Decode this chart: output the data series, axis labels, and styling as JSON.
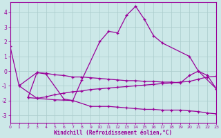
{
  "bg_color": "#cce8e8",
  "grid_color": "#aacccc",
  "line_color": "#990099",
  "xlim": [
    0,
    23
  ],
  "ylim": [
    -3.5,
    4.7
  ],
  "xticks": [
    0,
    1,
    2,
    3,
    4,
    5,
    6,
    7,
    8,
    9,
    10,
    11,
    12,
    13,
    14,
    15,
    16,
    17,
    18,
    19,
    20,
    21,
    22,
    23
  ],
  "yticks": [
    -3,
    -2,
    -1,
    0,
    1,
    2,
    3,
    4
  ],
  "xlabel": "Windchill (Refroidissement éolien,°C)",
  "lines": [
    {
      "x": [
        0,
        1,
        3,
        4,
        6,
        7,
        8,
        10,
        11,
        12,
        13,
        14,
        15,
        16,
        17,
        20,
        21,
        23
      ],
      "y": [
        1.7,
        -1.0,
        -0.1,
        -0.2,
        -1.9,
        -2.0,
        -0.6,
        2.0,
        2.7,
        2.6,
        3.8,
        4.4,
        3.5,
        2.4,
        1.9,
        1.0,
        0.0,
        -1.2
      ]
    },
    {
      "x": [
        2,
        3,
        5,
        7,
        9,
        10,
        11,
        12,
        13,
        14,
        15,
        16,
        17,
        18,
        19,
        20,
        21,
        22,
        23
      ],
      "y": [
        -1.8,
        -1.85,
        -1.95,
        -2.0,
        -2.4,
        -2.4,
        -2.4,
        -2.45,
        -2.5,
        -2.55,
        -2.6,
        -2.6,
        -2.65,
        -2.65,
        -2.65,
        -2.7,
        -2.75,
        -2.85,
        -2.9
      ]
    },
    {
      "x": [
        1,
        3,
        4,
        5,
        6,
        7,
        8,
        9,
        10,
        11,
        12,
        13,
        14,
        15,
        16,
        17,
        18,
        19,
        20,
        21,
        22,
        23
      ],
      "y": [
        -1.0,
        -1.85,
        -1.75,
        -1.6,
        -1.5,
        -1.4,
        -1.35,
        -1.25,
        -1.2,
        -1.15,
        -1.1,
        -1.05,
        -1.0,
        -0.95,
        -0.9,
        -0.85,
        -0.8,
        -0.75,
        -0.7,
        -0.55,
        -0.4,
        -0.35
      ]
    },
    {
      "x": [
        2,
        3,
        4,
        5,
        6,
        7,
        8,
        9,
        10,
        11,
        12,
        13,
        14,
        15,
        16,
        17,
        18,
        19,
        20,
        21,
        22,
        23
      ],
      "y": [
        -1.8,
        -0.1,
        -0.15,
        -0.25,
        -0.3,
        -0.4,
        -0.4,
        -0.45,
        -0.5,
        -0.55,
        -0.6,
        -0.65,
        -0.65,
        -0.7,
        -0.7,
        -0.75,
        -0.75,
        -0.8,
        -0.3,
        0.0,
        -0.3,
        -1.2
      ]
    }
  ]
}
